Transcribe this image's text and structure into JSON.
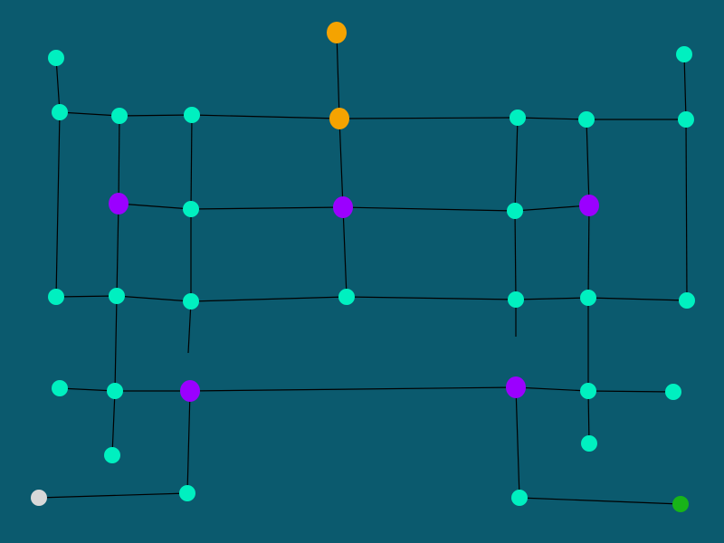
{
  "board": {
    "background": "#0b5a6e",
    "edge_color": "#000000",
    "node_colors": {
      "normal": "#00f0c0",
      "goal": "#f5a300",
      "special": "#9b00ff",
      "start": "#d8d8d8",
      "exit": "#18b418"
    }
  }
}
